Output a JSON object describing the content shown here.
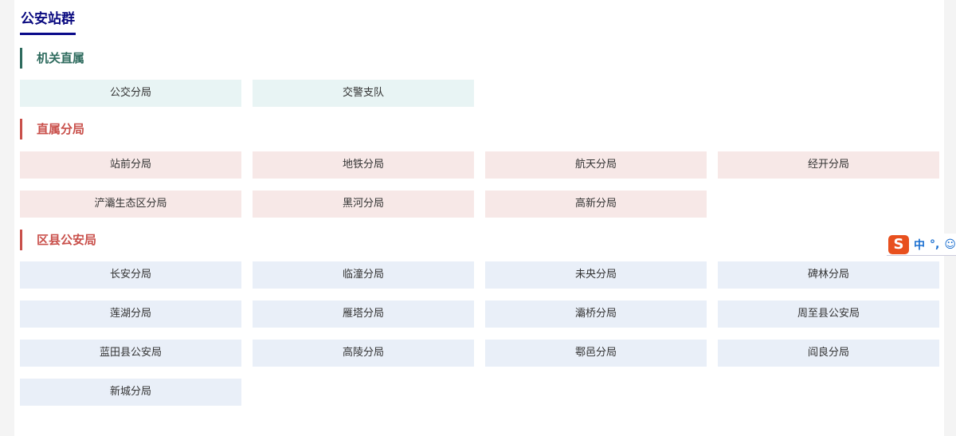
{
  "page_title": "公安站群",
  "sections": [
    {
      "heading": "机关直属",
      "color": "#2e6b5e",
      "bg": "#e8f4f4",
      "items": [
        "公交分局",
        "交警支队"
      ]
    },
    {
      "heading": "直属分局",
      "color": "#c9504b",
      "bg": "#f7e8e7",
      "items": [
        "站前分局",
        "地铁分局",
        "航天分局",
        "经开分局",
        "浐灞生态区分局",
        "黑河分局",
        "高新分局"
      ]
    },
    {
      "heading": "区县公安局",
      "color": "#c9504b",
      "bg": "#e9eff8",
      "items": [
        "长安分局",
        "临潼分局",
        "未央分局",
        "碑林分局",
        "莲湖分局",
        "雁塔分局",
        "灞桥分局",
        "周至县公安局",
        "蓝田县公安局",
        "高陵分局",
        "鄠邑分局",
        "阎良分局",
        "新城分局"
      ]
    }
  ],
  "ime": {
    "logo": "S",
    "mode": "中",
    "punct": "°,",
    "emoji_icon": "smiley-icon"
  }
}
